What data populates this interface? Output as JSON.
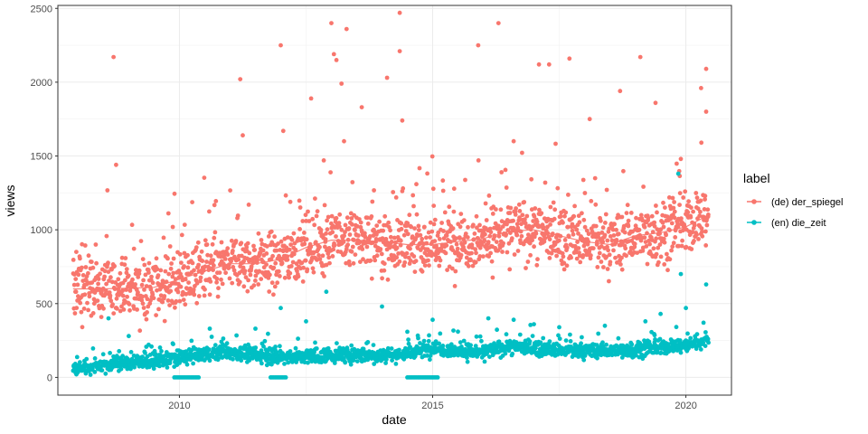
{
  "chart_data": {
    "type": "scatter",
    "xlabel": "date",
    "ylabel": "views",
    "xlim": [
      2007.6,
      2020.9
    ],
    "ylim": [
      -120,
      2520
    ],
    "x_ticks": [
      2010,
      2015,
      2020
    ],
    "x_tick_labels": [
      "2010",
      "2015",
      "2020"
    ],
    "y_ticks": [
      0,
      500,
      1000,
      1500,
      2000,
      2500
    ],
    "y_tick_labels": [
      "0",
      "500",
      "1000",
      "1500",
      "2000",
      "2500"
    ],
    "x_start": 2007.9,
    "x_end": 2020.45,
    "grid": true,
    "legend": {
      "title": "label",
      "position": "right",
      "entries": [
        "(de) der_spiegel",
        "(en) die_zeit"
      ]
    },
    "series": [
      {
        "name": "(de) der_spiegel",
        "color": "#F8766D",
        "trend": [
          [
            2007.9,
            600
          ],
          [
            2008.5,
            600
          ],
          [
            2009.5,
            610
          ],
          [
            2010.5,
            720
          ],
          [
            2011.0,
            770
          ],
          [
            2011.5,
            770
          ],
          [
            2012.0,
            800
          ],
          [
            2012.5,
            880
          ],
          [
            2013.0,
            930
          ],
          [
            2013.5,
            930
          ],
          [
            2014.0,
            920
          ],
          [
            2014.5,
            900
          ],
          [
            2015.0,
            900
          ],
          [
            2015.5,
            920
          ],
          [
            2016.0,
            940
          ],
          [
            2016.5,
            990
          ],
          [
            2017.0,
            1000
          ],
          [
            2017.5,
            960
          ],
          [
            2018.0,
            920
          ],
          [
            2018.5,
            900
          ],
          [
            2019.0,
            960
          ],
          [
            2019.5,
            980
          ],
          [
            2020.0,
            1020
          ],
          [
            2020.45,
            1100
          ]
        ],
        "spread": 140,
        "spikes": [
          [
            2008.7,
            2170
          ],
          [
            2008.75,
            1440
          ],
          [
            2011.2,
            2020
          ],
          [
            2011.25,
            1640
          ],
          [
            2012.0,
            2250
          ],
          [
            2012.05,
            1670
          ],
          [
            2012.6,
            1890
          ],
          [
            2012.85,
            1470
          ],
          [
            2013.0,
            2400
          ],
          [
            2013.05,
            2190
          ],
          [
            2013.1,
            2150
          ],
          [
            2013.2,
            1990
          ],
          [
            2013.25,
            1600
          ],
          [
            2013.3,
            2360
          ],
          [
            2013.6,
            1830
          ],
          [
            2014.1,
            2030
          ],
          [
            2014.35,
            2470
          ],
          [
            2014.35,
            2210
          ],
          [
            2014.4,
            1740
          ],
          [
            2015.9,
            2250
          ],
          [
            2016.3,
            2400
          ],
          [
            2016.6,
            1600
          ],
          [
            2017.1,
            2120
          ],
          [
            2017.3,
            2120
          ],
          [
            2017.7,
            2160
          ],
          [
            2018.1,
            1750
          ],
          [
            2018.7,
            1940
          ],
          [
            2019.1,
            2170
          ],
          [
            2019.4,
            1860
          ],
          [
            2019.9,
            1480
          ],
          [
            2020.3,
            1960
          ],
          [
            2020.4,
            2090
          ],
          [
            2020.4,
            1800
          ]
        ]
      },
      {
        "name": "(en) die_zeit",
        "color": "#00BFC4",
        "trend": [
          [
            2007.9,
            60
          ],
          [
            2008.5,
            85
          ],
          [
            2009.5,
            110
          ],
          [
            2010.0,
            130
          ],
          [
            2010.5,
            160
          ],
          [
            2011.0,
            170
          ],
          [
            2011.5,
            150
          ],
          [
            2012.0,
            140
          ],
          [
            2012.5,
            140
          ],
          [
            2013.0,
            150
          ],
          [
            2013.5,
            150
          ],
          [
            2014.0,
            150
          ],
          [
            2014.5,
            160
          ],
          [
            2015.0,
            200
          ],
          [
            2015.5,
            180
          ],
          [
            2016.0,
            170
          ],
          [
            2016.5,
            210
          ],
          [
            2017.0,
            200
          ],
          [
            2017.5,
            180
          ],
          [
            2018.0,
            180
          ],
          [
            2018.5,
            180
          ],
          [
            2019.0,
            190
          ],
          [
            2019.5,
            200
          ],
          [
            2020.0,
            220
          ],
          [
            2020.45,
            260
          ]
        ],
        "spread": 35,
        "spikes": [
          [
            2008.6,
            400
          ],
          [
            2009.0,
            280
          ],
          [
            2010.6,
            330
          ],
          [
            2011.5,
            330
          ],
          [
            2012.0,
            470
          ],
          [
            2012.5,
            380
          ],
          [
            2012.9,
            580
          ],
          [
            2014.0,
            480
          ],
          [
            2015.0,
            390
          ],
          [
            2015.5,
            310
          ],
          [
            2016.1,
            400
          ],
          [
            2016.6,
            390
          ],
          [
            2017.0,
            360
          ],
          [
            2017.5,
            340
          ],
          [
            2018.4,
            350
          ],
          [
            2019.2,
            380
          ],
          [
            2019.5,
            430
          ],
          [
            2019.9,
            700
          ],
          [
            2019.85,
            1380
          ],
          [
            2020.0,
            470
          ],
          [
            2020.4,
            630
          ]
        ],
        "zeros": [
          [
            2009.9,
            2010.4
          ],
          [
            2011.8,
            2012.1
          ],
          [
            2014.5,
            2015.1
          ]
        ]
      }
    ]
  }
}
